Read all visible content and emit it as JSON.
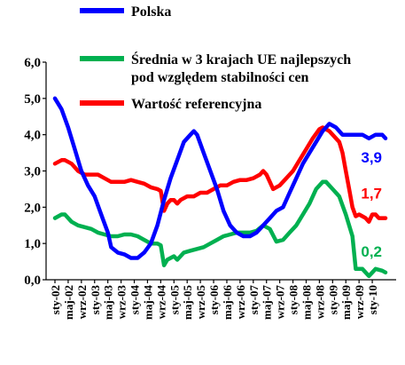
{
  "chart_data": {
    "type": "line",
    "title": "",
    "xlabel": "",
    "ylabel": "",
    "ylim": [
      0,
      6
    ],
    "yticks": [
      "0,0",
      "1,0",
      "2,0",
      "3,0",
      "4,0",
      "5,0",
      "6,0"
    ],
    "grid": false,
    "legend": "top",
    "x_tick_labels": [
      "sty-02",
      "maj-02",
      "wrz-02",
      "sty-03",
      "maj-03",
      "wrz-03",
      "sty-04",
      "maj-04",
      "wrz-04",
      "sty-05",
      "maj-05",
      "wrz-05",
      "sty-06",
      "maj-06",
      "wrz-06",
      "sty-07",
      "maj-07",
      "wrz-07",
      "sty-08",
      "maj-08",
      "wrz-08",
      "sty-09",
      "maj-09",
      "wrz-09",
      "sty-10"
    ],
    "x_tick_months": [
      0,
      4,
      8,
      12,
      16,
      20,
      24,
      28,
      32,
      36,
      40,
      44,
      48,
      52,
      56,
      60,
      64,
      68,
      72,
      76,
      80,
      84,
      88,
      92,
      96
    ],
    "x_range_months": [
      0,
      100
    ],
    "series": [
      {
        "name": "Polska",
        "color": "#0000ff",
        "points": [
          [
            0,
            5.0
          ],
          [
            2,
            4.7
          ],
          [
            4,
            4.2
          ],
          [
            6,
            3.6
          ],
          [
            8,
            3.0
          ],
          [
            10,
            2.6
          ],
          [
            12,
            2.3
          ],
          [
            14,
            1.8
          ],
          [
            16,
            1.3
          ],
          [
            17,
            0.9
          ],
          [
            19,
            0.75
          ],
          [
            21,
            0.7
          ],
          [
            23,
            0.6
          ],
          [
            25,
            0.6
          ],
          [
            27,
            0.75
          ],
          [
            29,
            1.0
          ],
          [
            31,
            1.5
          ],
          [
            33,
            2.2
          ],
          [
            35,
            2.8
          ],
          [
            37,
            3.3
          ],
          [
            39,
            3.8
          ],
          [
            41,
            4.0
          ],
          [
            42,
            4.1
          ],
          [
            43,
            4.0
          ],
          [
            45,
            3.5
          ],
          [
            47,
            3.0
          ],
          [
            49,
            2.5
          ],
          [
            51,
            1.9
          ],
          [
            53,
            1.5
          ],
          [
            55,
            1.3
          ],
          [
            57,
            1.2
          ],
          [
            59,
            1.2
          ],
          [
            61,
            1.3
          ],
          [
            63,
            1.5
          ],
          [
            65,
            1.7
          ],
          [
            67,
            1.9
          ],
          [
            69,
            2.0
          ],
          [
            71,
            2.4
          ],
          [
            73,
            2.8
          ],
          [
            75,
            3.2
          ],
          [
            77,
            3.5
          ],
          [
            79,
            3.8
          ],
          [
            81,
            4.1
          ],
          [
            83,
            4.3
          ],
          [
            85,
            4.2
          ],
          [
            87,
            4.0
          ],
          [
            89,
            4.0
          ],
          [
            91,
            4.0
          ],
          [
            93,
            4.0
          ],
          [
            95,
            3.9
          ],
          [
            97,
            4.0
          ],
          [
            99,
            4.0
          ],
          [
            100,
            3.9
          ]
        ],
        "end_label": "3,9"
      },
      {
        "name": "Średnia w 3 krajach UE najlepszych pod względem stabilności cen",
        "color": "#00b050",
        "points": [
          [
            0,
            1.7
          ],
          [
            2,
            1.8
          ],
          [
            3,
            1.8
          ],
          [
            5,
            1.6
          ],
          [
            7,
            1.5
          ],
          [
            9,
            1.45
          ],
          [
            11,
            1.4
          ],
          [
            13,
            1.3
          ],
          [
            15,
            1.25
          ],
          [
            17,
            1.2
          ],
          [
            19,
            1.2
          ],
          [
            21,
            1.25
          ],
          [
            23,
            1.25
          ],
          [
            25,
            1.2
          ],
          [
            27,
            1.1
          ],
          [
            29,
            1.0
          ],
          [
            31,
            1.0
          ],
          [
            32,
            0.95
          ],
          [
            33,
            0.4
          ],
          [
            34,
            0.55
          ],
          [
            35,
            0.6
          ],
          [
            36,
            0.65
          ],
          [
            37,
            0.55
          ],
          [
            38,
            0.65
          ],
          [
            39,
            0.75
          ],
          [
            41,
            0.8
          ],
          [
            43,
            0.85
          ],
          [
            45,
            0.9
          ],
          [
            47,
            1.0
          ],
          [
            49,
            1.1
          ],
          [
            51,
            1.2
          ],
          [
            53,
            1.25
          ],
          [
            55,
            1.3
          ],
          [
            57,
            1.3
          ],
          [
            59,
            1.3
          ],
          [
            61,
            1.35
          ],
          [
            63,
            1.5
          ],
          [
            65,
            1.4
          ],
          [
            67,
            1.05
          ],
          [
            69,
            1.1
          ],
          [
            71,
            1.3
          ],
          [
            73,
            1.5
          ],
          [
            75,
            1.8
          ],
          [
            77,
            2.1
          ],
          [
            79,
            2.5
          ],
          [
            81,
            2.7
          ],
          [
            82,
            2.7
          ],
          [
            84,
            2.5
          ],
          [
            86,
            2.3
          ],
          [
            88,
            1.8
          ],
          [
            90,
            1.2
          ],
          [
            91,
            0.3
          ],
          [
            92,
            0.3
          ],
          [
            93,
            0.3
          ],
          [
            94,
            0.2
          ],
          [
            95,
            0.1
          ],
          [
            96,
            0.2
          ],
          [
            97,
            0.3
          ],
          [
            99,
            0.25
          ],
          [
            100,
            0.2
          ]
        ],
        "end_label": "0,2"
      },
      {
        "name": "Wartość referencyjna",
        "color": "#ff0000",
        "points": [
          [
            0,
            3.2
          ],
          [
            2,
            3.3
          ],
          [
            3,
            3.3
          ],
          [
            5,
            3.2
          ],
          [
            7,
            3.0
          ],
          [
            9,
            2.9
          ],
          [
            11,
            2.9
          ],
          [
            13,
            2.9
          ],
          [
            15,
            2.8
          ],
          [
            17,
            2.7
          ],
          [
            19,
            2.7
          ],
          [
            21,
            2.7
          ],
          [
            23,
            2.75
          ],
          [
            25,
            2.7
          ],
          [
            27,
            2.65
          ],
          [
            29,
            2.55
          ],
          [
            31,
            2.5
          ],
          [
            32,
            2.45
          ],
          [
            33,
            1.9
          ],
          [
            34,
            2.1
          ],
          [
            35,
            2.2
          ],
          [
            36,
            2.2
          ],
          [
            37,
            2.1
          ],
          [
            38,
            2.2
          ],
          [
            40,
            2.3
          ],
          [
            42,
            2.3
          ],
          [
            44,
            2.4
          ],
          [
            46,
            2.4
          ],
          [
            48,
            2.5
          ],
          [
            50,
            2.6
          ],
          [
            52,
            2.6
          ],
          [
            54,
            2.7
          ],
          [
            56,
            2.75
          ],
          [
            58,
            2.75
          ],
          [
            60,
            2.8
          ],
          [
            62,
            2.9
          ],
          [
            63,
            3.0
          ],
          [
            64,
            2.9
          ],
          [
            65,
            2.7
          ],
          [
            66,
            2.5
          ],
          [
            68,
            2.6
          ],
          [
            70,
            2.8
          ],
          [
            72,
            3.0
          ],
          [
            74,
            3.3
          ],
          [
            76,
            3.6
          ],
          [
            78,
            3.9
          ],
          [
            80,
            4.15
          ],
          [
            81,
            4.2
          ],
          [
            83,
            4.1
          ],
          [
            85,
            3.9
          ],
          [
            86,
            3.8
          ],
          [
            87,
            3.5
          ],
          [
            88,
            3.0
          ],
          [
            89,
            2.5
          ],
          [
            90,
            2.0
          ],
          [
            91,
            1.75
          ],
          [
            92,
            1.8
          ],
          [
            93,
            1.75
          ],
          [
            94,
            1.7
          ],
          [
            95,
            1.6
          ],
          [
            96,
            1.8
          ],
          [
            97,
            1.8
          ],
          [
            98,
            1.7
          ],
          [
            99,
            1.7
          ],
          [
            100,
            1.7
          ]
        ],
        "end_label": "1,7"
      }
    ]
  }
}
